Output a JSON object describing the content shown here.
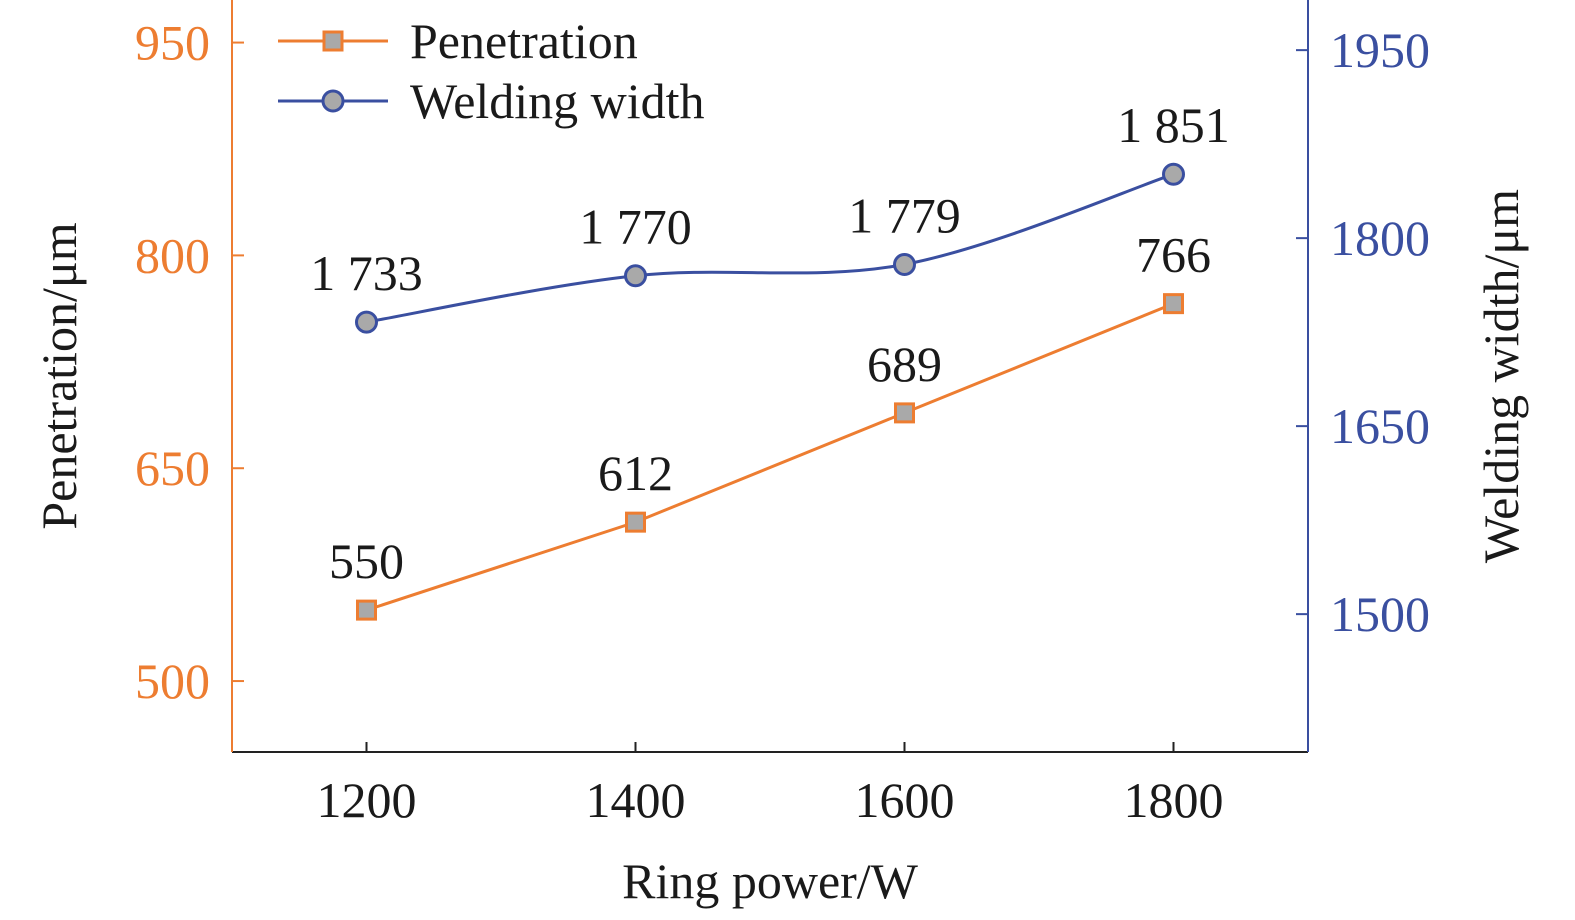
{
  "chart_data": {
    "type": "line",
    "xlabel": "Ring power/W",
    "x": [
      1200,
      1400,
      1600,
      1800
    ],
    "xticks": [
      "1200",
      "1400",
      "1600",
      "1800"
    ],
    "xlim": [
      1100,
      1900
    ],
    "ylabel_left": "Penetration/μm",
    "ylabel_right": "Welding width/μm",
    "ylim_left": [
      450,
      980
    ],
    "ylim_right": [
      1390,
      1990
    ],
    "yticks_left": [
      500,
      650,
      800,
      950
    ],
    "yticks_right": [
      1500,
      1650,
      1800,
      1950
    ],
    "grid": false,
    "legend_position": "top-left",
    "series": [
      {
        "name": "Penetration",
        "axis": "left",
        "marker": "square",
        "color": "#ED7D31",
        "values": [
          550,
          612,
          689,
          766
        ],
        "labels": [
          "550",
          "612",
          "689",
          "766"
        ]
      },
      {
        "name": "Welding width",
        "axis": "right",
        "marker": "circle",
        "color": "#3A4FA0",
        "values": [
          1733,
          1770,
          1779,
          1851
        ],
        "labels": [
          "1 733",
          "1 770",
          "1 779",
          "1 851"
        ]
      }
    ],
    "left_axis_color": "#ED7D31",
    "right_axis_color": "#3A4FA0"
  }
}
